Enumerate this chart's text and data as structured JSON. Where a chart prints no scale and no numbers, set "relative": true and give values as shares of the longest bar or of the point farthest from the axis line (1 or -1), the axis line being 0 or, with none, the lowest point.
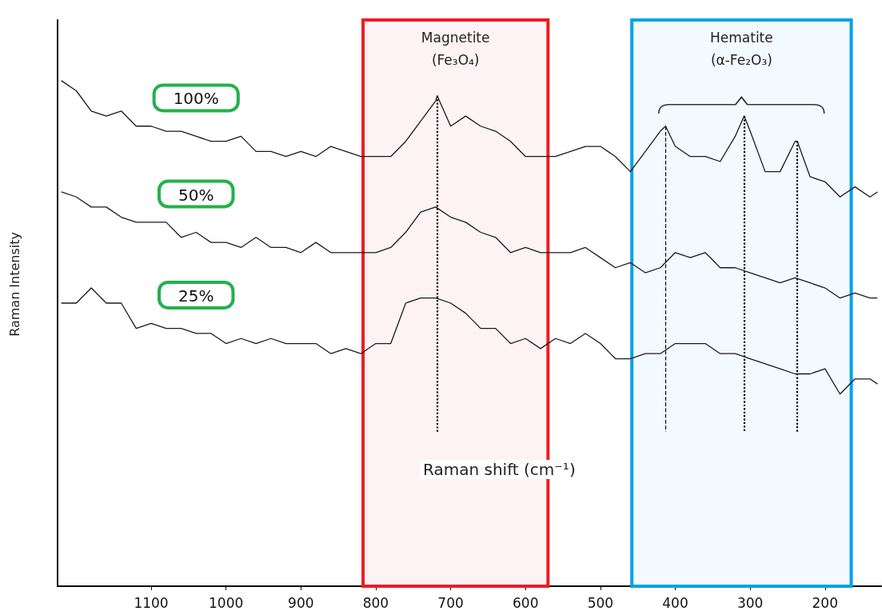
{
  "chart_data": {
    "type": "line",
    "relative": true,
    "xlabel": "Raman shift (cm⁻¹)",
    "ylabel": "Raman Intensity",
    "xlim": [
      1225,
      125
    ],
    "xticks": [
      1100,
      1000,
      900,
      800,
      700,
      600,
      500,
      400,
      300,
      200
    ],
    "grid": false,
    "legend": false,
    "marker": "none",
    "line_style": "solid",
    "x": [
      1220,
      1200,
      1180,
      1160,
      1140,
      1120,
      1100,
      1080,
      1060,
      1040,
      1020,
      1000,
      980,
      960,
      940,
      920,
      900,
      880,
      860,
      840,
      820,
      800,
      780,
      760,
      740,
      720,
      700,
      680,
      660,
      640,
      620,
      600,
      580,
      560,
      540,
      520,
      500,
      480,
      460,
      440,
      420,
      400,
      380,
      360,
      340,
      320,
      300,
      280,
      260,
      240,
      220,
      200,
      180,
      160,
      140,
      130
    ],
    "series": [
      {
        "name": "100%",
        "color": "#1a1a1a",
        "x": [
          1220,
          1200,
          1180,
          1160,
          1140,
          1120,
          1100,
          1080,
          1060,
          1040,
          1020,
          1000,
          980,
          960,
          940,
          920,
          900,
          880,
          860,
          840,
          820,
          800,
          780,
          760,
          740,
          720,
          718,
          700,
          680,
          660,
          640,
          620,
          600,
          580,
          560,
          540,
          520,
          500,
          480,
          460,
          440,
          420,
          413,
          400,
          380,
          360,
          340,
          320,
          308,
          300,
          280,
          260,
          240,
          237,
          220,
          200,
          180,
          160,
          140,
          130
        ],
        "values": [
          1.0,
          0.98,
          0.94,
          0.93,
          0.94,
          0.91,
          0.91,
          0.9,
          0.9,
          0.89,
          0.88,
          0.88,
          0.89,
          0.86,
          0.86,
          0.85,
          0.86,
          0.85,
          0.87,
          0.86,
          0.85,
          0.85,
          0.85,
          0.88,
          0.92,
          0.96,
          0.97,
          0.91,
          0.93,
          0.91,
          0.9,
          0.88,
          0.85,
          0.85,
          0.85,
          0.86,
          0.87,
          0.87,
          0.85,
          0.82,
          0.86,
          0.9,
          0.91,
          0.87,
          0.85,
          0.85,
          0.84,
          0.89,
          0.93,
          0.9,
          0.82,
          0.82,
          0.88,
          0.88,
          0.81,
          0.8,
          0.77,
          0.79,
          0.77,
          0.78
        ]
      },
      {
        "name": "50%",
        "color": "#1a1a1a",
        "values": [
          0.78,
          0.77,
          0.75,
          0.75,
          0.73,
          0.72,
          0.72,
          0.72,
          0.69,
          0.7,
          0.68,
          0.68,
          0.67,
          0.69,
          0.67,
          0.67,
          0.66,
          0.68,
          0.66,
          0.66,
          0.66,
          0.66,
          0.67,
          0.7,
          0.74,
          0.75,
          0.73,
          0.72,
          0.7,
          0.69,
          0.66,
          0.67,
          0.66,
          0.66,
          0.66,
          0.67,
          0.65,
          0.63,
          0.64,
          0.62,
          0.63,
          0.66,
          0.65,
          0.66,
          0.63,
          0.63,
          0.62,
          0.61,
          0.6,
          0.61,
          0.6,
          0.59,
          0.57,
          0.58,
          0.57,
          0.57
        ]
      },
      {
        "name": "25%",
        "color": "#1a1a1a",
        "values": [
          0.56,
          0.56,
          0.59,
          0.56,
          0.56,
          0.51,
          0.52,
          0.51,
          0.51,
          0.5,
          0.5,
          0.48,
          0.49,
          0.48,
          0.49,
          0.48,
          0.48,
          0.48,
          0.46,
          0.47,
          0.46,
          0.48,
          0.48,
          0.56,
          0.57,
          0.57,
          0.56,
          0.54,
          0.51,
          0.51,
          0.48,
          0.49,
          0.47,
          0.49,
          0.48,
          0.5,
          0.48,
          0.45,
          0.45,
          0.46,
          0.46,
          0.48,
          0.48,
          0.48,
          0.46,
          0.46,
          0.45,
          0.44,
          0.43,
          0.42,
          0.42,
          0.43,
          0.38,
          0.41,
          0.41,
          0.4
        ]
      }
    ],
    "bands": [
      {
        "axis": "x",
        "from": 817,
        "to": 570,
        "label": "Magnetite\n(Fe₃O₄)",
        "color": "#ed1c24"
      },
      {
        "axis": "x",
        "from": 458,
        "to": 165,
        "label": "Hematite\n(α-Fe₂O₃)",
        "color": "#00a2e8"
      }
    ],
    "ref_lines": [
      {
        "axis": "x",
        "value": 718,
        "line_style": "dotted"
      },
      {
        "axis": "x",
        "value": 413,
        "line_style": "dashed"
      },
      {
        "axis": "x",
        "value": 308,
        "line_style": "dotted"
      },
      {
        "axis": "x",
        "value": 237,
        "line_style": "dotted"
      }
    ]
  }
}
